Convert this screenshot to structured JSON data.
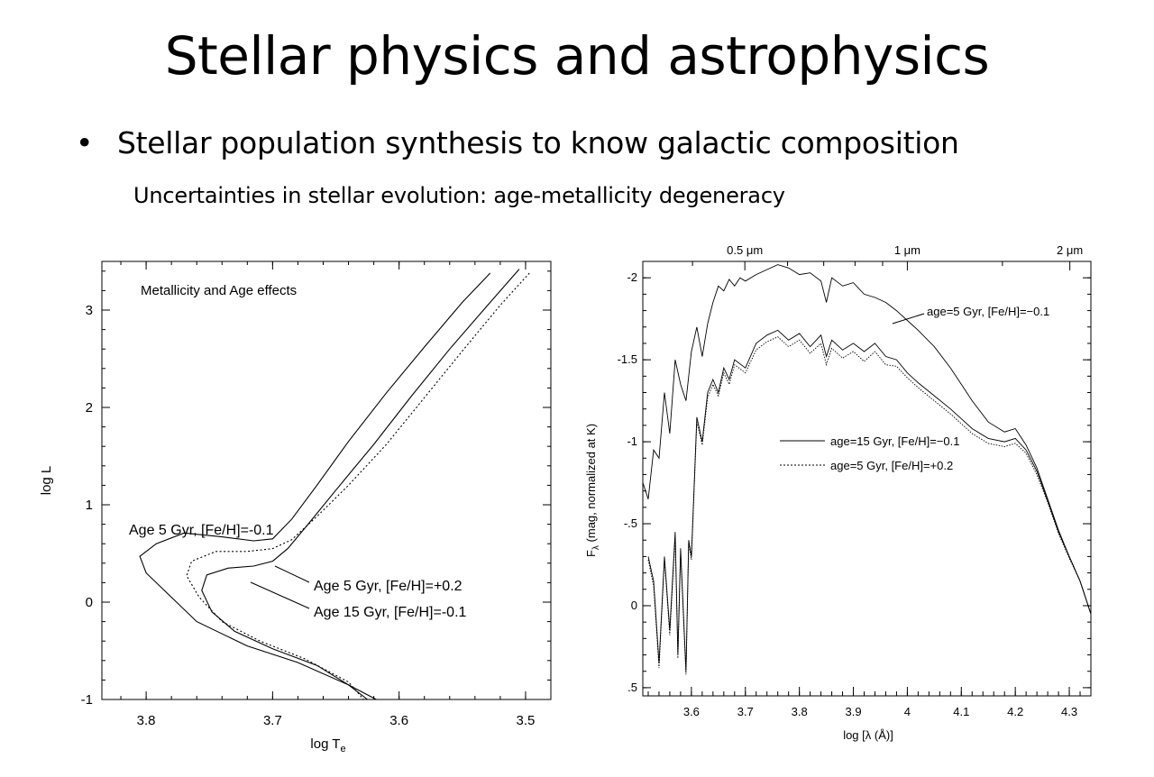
{
  "slide": {
    "title": "Stellar physics and astrophysics",
    "bullet_symbol": "•",
    "bullet": "Stellar population synthesis to know galactic composition",
    "subpoint": "Uncertainties in stellar evolution: age-metallicity degeneracy"
  },
  "chart_data": [
    {
      "type": "line",
      "title": "Metallicity and Age effects",
      "xlabel": "log T",
      "xlabel_sub": "e",
      "ylabel": "log L",
      "xlim": [
        3.835,
        3.48
      ],
      "ylim": [
        -1,
        3.5
      ],
      "xticks": [
        3.8,
        3.7,
        3.6,
        3.5
      ],
      "yticks": [
        -1,
        0,
        1,
        2,
        3
      ],
      "series": [
        {
          "name": "Age 5 Gyr, [Fe/H]=-0.1",
          "style": "solid",
          "points": [
            [
              3.528,
              3.38
            ],
            [
              3.55,
              3.08
            ],
            [
              3.58,
              2.62
            ],
            [
              3.61,
              2.15
            ],
            [
              3.64,
              1.65
            ],
            [
              3.665,
              1.2
            ],
            [
              3.685,
              0.85
            ],
            [
              3.7,
              0.65
            ],
            [
              3.715,
              0.63
            ],
            [
              3.74,
              0.67
            ],
            [
              3.77,
              0.71
            ],
            [
              3.792,
              0.6
            ],
            [
              3.805,
              0.47
            ],
            [
              3.8,
              0.3
            ],
            [
              3.78,
              0.05
            ],
            [
              3.76,
              -0.2
            ],
            [
              3.72,
              -0.45
            ],
            [
              3.68,
              -0.62
            ],
            [
              3.64,
              -0.85
            ],
            [
              3.618,
              -1.0
            ]
          ]
        },
        {
          "name": "Age 5 Gyr, [Fe/H]=+0.2",
          "style": "dotted",
          "points": [
            [
              3.497,
              3.38
            ],
            [
              3.52,
              3.05
            ],
            [
              3.55,
              2.58
            ],
            [
              3.58,
              2.1
            ],
            [
              3.61,
              1.62
            ],
            [
              3.64,
              1.2
            ],
            [
              3.665,
              0.88
            ],
            [
              3.685,
              0.64
            ],
            [
              3.7,
              0.55
            ],
            [
              3.72,
              0.52
            ],
            [
              3.745,
              0.52
            ],
            [
              3.764,
              0.42
            ],
            [
              3.768,
              0.27
            ],
            [
              3.758,
              0.05
            ],
            [
              3.74,
              -0.2
            ],
            [
              3.71,
              -0.4
            ],
            [
              3.675,
              -0.58
            ],
            [
              3.64,
              -0.82
            ],
            [
              3.628,
              -1.0
            ]
          ]
        },
        {
          "name": "Age 15 Gyr, [Fe/H]=-0.1",
          "style": "solid",
          "points": [
            [
              3.505,
              3.42
            ],
            [
              3.53,
              3.05
            ],
            [
              3.56,
              2.6
            ],
            [
              3.59,
              2.12
            ],
            [
              3.62,
              1.62
            ],
            [
              3.65,
              1.15
            ],
            [
              3.672,
              0.8
            ],
            [
              3.688,
              0.55
            ],
            [
              3.7,
              0.42
            ],
            [
              3.715,
              0.37
            ],
            [
              3.735,
              0.35
            ],
            [
              3.752,
              0.28
            ],
            [
              3.756,
              0.12
            ],
            [
              3.748,
              -0.1
            ],
            [
              3.73,
              -0.3
            ],
            [
              3.7,
              -0.48
            ],
            [
              3.665,
              -0.65
            ],
            [
              3.64,
              -0.85
            ],
            [
              3.625,
              -1.0
            ]
          ]
        }
      ],
      "annotations": [
        {
          "text": "Age 5 Gyr, [Fe/H]=-0.1"
        },
        {
          "text": "Age 5 Gyr, [Fe/H]=+0.2"
        },
        {
          "text": "Age 15 Gyr, [Fe/H]=-0.1"
        }
      ]
    },
    {
      "type": "line",
      "xlabel": "log [λ (Å)]",
      "ylabel": "F",
      "ylabel_sub": "λ",
      "ylabel_rest": " (mag, normalized at K)",
      "xlim": [
        3.51,
        4.34
      ],
      "ylim": [
        0.55,
        -2.1
      ],
      "xticks": [
        3.6,
        3.7,
        3.8,
        3.9,
        4,
        4.1,
        4.2,
        4.3
      ],
      "ytick_values": [
        0.5,
        0,
        -0.5,
        -1,
        -1.5,
        -2
      ],
      "ytick_labels": [
        ".5",
        "0",
        "-.5",
        "-1",
        "-1.5",
        "-2"
      ],
      "top_axis_labels": [
        {
          "value": 3.699,
          "label": "0.5 μm"
        },
        {
          "value": 4.0,
          "label": "1 μm"
        },
        {
          "value": 4.301,
          "label": "2 μm"
        }
      ],
      "series": [
        {
          "name": "age=5 Gyr, [Fe/H]=-0.1",
          "style": "solid",
          "points": [
            [
              3.51,
              -0.75
            ],
            [
              3.52,
              -0.65
            ],
            [
              3.53,
              -0.95
            ],
            [
              3.54,
              -0.9
            ],
            [
              3.55,
              -1.3
            ],
            [
              3.56,
              -1.05
            ],
            [
              3.57,
              -1.5
            ],
            [
              3.58,
              -1.35
            ],
            [
              3.59,
              -1.25
            ],
            [
              3.6,
              -1.55
            ],
            [
              3.61,
              -1.7
            ],
            [
              3.62,
              -1.52
            ],
            [
              3.63,
              -1.72
            ],
            [
              3.64,
              -1.85
            ],
            [
              3.65,
              -1.95
            ],
            [
              3.66,
              -1.92
            ],
            [
              3.67,
              -1.99
            ],
            [
              3.68,
              -1.95
            ],
            [
              3.69,
              -2.0
            ],
            [
              3.7,
              -1.98
            ],
            [
              3.72,
              -2.02
            ],
            [
              3.74,
              -2.05
            ],
            [
              3.76,
              -2.08
            ],
            [
              3.78,
              -2.06
            ],
            [
              3.8,
              -2.02
            ],
            [
              3.82,
              -2.03
            ],
            [
              3.84,
              -1.98
            ],
            [
              3.85,
              -1.85
            ],
            [
              3.86,
              -2.0
            ],
            [
              3.88,
              -1.95
            ],
            [
              3.9,
              -1.97
            ],
            [
              3.92,
              -1.9
            ],
            [
              3.94,
              -1.88
            ],
            [
              3.96,
              -1.85
            ],
            [
              3.98,
              -1.8
            ],
            [
              4.0,
              -1.74
            ],
            [
              4.02,
              -1.68
            ],
            [
              4.05,
              -1.58
            ],
            [
              4.08,
              -1.45
            ],
            [
              4.1,
              -1.35
            ],
            [
              4.12,
              -1.25
            ],
            [
              4.15,
              -1.12
            ],
            [
              4.18,
              -1.06
            ],
            [
              4.2,
              -1.08
            ],
            [
              4.22,
              -0.98
            ],
            [
              4.24,
              -0.84
            ],
            [
              4.26,
              -0.65
            ],
            [
              4.28,
              -0.46
            ],
            [
              4.3,
              -0.3
            ],
            [
              4.32,
              -0.15
            ],
            [
              4.34,
              0.05
            ]
          ]
        },
        {
          "name": "age=15 Gyr, [Fe/H]=-0.1",
          "style": "solid",
          "points": [
            [
              3.52,
              -0.3
            ],
            [
              3.53,
              -0.15
            ],
            [
              3.54,
              0.35
            ],
            [
              3.55,
              -0.3
            ],
            [
              3.56,
              0.15
            ],
            [
              3.57,
              -0.45
            ],
            [
              3.575,
              0.3
            ],
            [
              3.58,
              -0.35
            ],
            [
              3.59,
              0.4
            ],
            [
              3.595,
              -0.4
            ],
            [
              3.6,
              -0.3
            ],
            [
              3.61,
              -1.15
            ],
            [
              3.62,
              -1.0
            ],
            [
              3.63,
              -1.3
            ],
            [
              3.64,
              -1.38
            ],
            [
              3.65,
              -1.3
            ],
            [
              3.66,
              -1.45
            ],
            [
              3.67,
              -1.38
            ],
            [
              3.68,
              -1.5
            ],
            [
              3.7,
              -1.45
            ],
            [
              3.72,
              -1.6
            ],
            [
              3.74,
              -1.65
            ],
            [
              3.76,
              -1.68
            ],
            [
              3.78,
              -1.62
            ],
            [
              3.8,
              -1.66
            ],
            [
              3.82,
              -1.58
            ],
            [
              3.84,
              -1.65
            ],
            [
              3.85,
              -1.52
            ],
            [
              3.86,
              -1.62
            ],
            [
              3.88,
              -1.56
            ],
            [
              3.9,
              -1.6
            ],
            [
              3.92,
              -1.55
            ],
            [
              3.94,
              -1.6
            ],
            [
              3.96,
              -1.52
            ],
            [
              3.98,
              -1.5
            ],
            [
              4.0,
              -1.42
            ],
            [
              4.02,
              -1.36
            ],
            [
              4.05,
              -1.28
            ],
            [
              4.08,
              -1.2
            ],
            [
              4.1,
              -1.14
            ],
            [
              4.12,
              -1.08
            ],
            [
              4.15,
              -1.02
            ],
            [
              4.18,
              -1.0
            ],
            [
              4.2,
              -1.02
            ],
            [
              4.22,
              -0.95
            ],
            [
              4.24,
              -0.82
            ],
            [
              4.26,
              -0.64
            ],
            [
              4.28,
              -0.45
            ],
            [
              4.3,
              -0.3
            ],
            [
              4.32,
              -0.15
            ],
            [
              4.34,
              0.05
            ]
          ]
        },
        {
          "name": "age=5 Gyr, [Fe/H]=+0.2",
          "style": "dotted",
          "points": [
            [
              3.52,
              -0.28
            ],
            [
              3.53,
              -0.12
            ],
            [
              3.54,
              0.38
            ],
            [
              3.55,
              -0.28
            ],
            [
              3.56,
              0.18
            ],
            [
              3.57,
              -0.42
            ],
            [
              3.575,
              0.32
            ],
            [
              3.58,
              -0.32
            ],
            [
              3.59,
              0.42
            ],
            [
              3.595,
              -0.38
            ],
            [
              3.6,
              -0.28
            ],
            [
              3.61,
              -1.12
            ],
            [
              3.62,
              -0.98
            ],
            [
              3.63,
              -1.27
            ],
            [
              3.64,
              -1.35
            ],
            [
              3.65,
              -1.28
            ],
            [
              3.66,
              -1.42
            ],
            [
              3.67,
              -1.35
            ],
            [
              3.68,
              -1.47
            ],
            [
              3.7,
              -1.42
            ],
            [
              3.72,
              -1.56
            ],
            [
              3.74,
              -1.61
            ],
            [
              3.76,
              -1.64
            ],
            [
              3.78,
              -1.58
            ],
            [
              3.8,
              -1.62
            ],
            [
              3.82,
              -1.54
            ],
            [
              3.84,
              -1.6
            ],
            [
              3.85,
              -1.47
            ],
            [
              3.86,
              -1.57
            ],
            [
              3.88,
              -1.51
            ],
            [
              3.9,
              -1.55
            ],
            [
              3.92,
              -1.49
            ],
            [
              3.94,
              -1.55
            ],
            [
              3.96,
              -1.47
            ],
            [
              3.98,
              -1.46
            ],
            [
              4.0,
              -1.39
            ],
            [
              4.02,
              -1.33
            ],
            [
              4.05,
              -1.25
            ],
            [
              4.08,
              -1.17
            ],
            [
              4.1,
              -1.11
            ],
            [
              4.12,
              -1.05
            ],
            [
              4.15,
              -0.99
            ],
            [
              4.18,
              -0.97
            ],
            [
              4.2,
              -0.99
            ],
            [
              4.22,
              -0.93
            ],
            [
              4.24,
              -0.8
            ],
            [
              4.26,
              -0.63
            ],
            [
              4.28,
              -0.44
            ],
            [
              4.3,
              -0.29
            ],
            [
              4.32,
              -0.15
            ],
            [
              4.34,
              0.05
            ]
          ]
        }
      ],
      "annotations": [
        {
          "text": "age=5 Gyr, [Fe/H]=−0.1"
        },
        {
          "text": "age=15 Gyr, [Fe/H]=−0.1"
        },
        {
          "text": "age=5 Gyr, [Fe/H]=+0.2"
        }
      ]
    }
  ]
}
